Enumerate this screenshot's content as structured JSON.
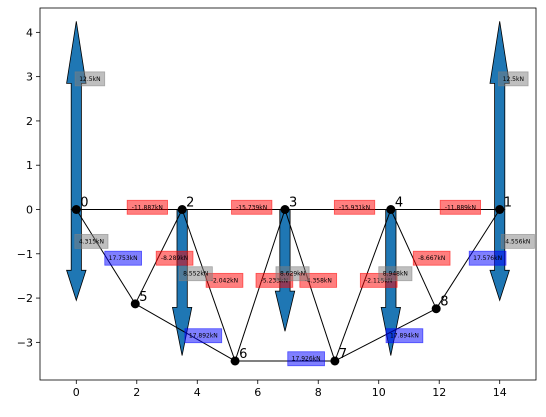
{
  "axes": {
    "xlim": [
      -1.2,
      15.2
    ],
    "ylim": [
      -3.85,
      4.55
    ],
    "xticks": [
      0,
      2,
      4,
      6,
      8,
      10,
      12,
      14
    ],
    "yticks": [
      -3,
      -2,
      -1,
      0,
      1,
      2,
      3,
      4
    ]
  },
  "nodes": [
    {
      "id": "0",
      "x": 0,
      "y": 0
    },
    {
      "id": "1",
      "x": 14,
      "y": 0
    },
    {
      "id": "2",
      "x": 3.5,
      "y": 0
    },
    {
      "id": "3",
      "x": 6.9,
      "y": 0
    },
    {
      "id": "4",
      "x": 10.4,
      "y": 0
    },
    {
      "id": "5",
      "x": 1.95,
      "y": -2.13
    },
    {
      "id": "6",
      "x": 5.25,
      "y": -3.42
    },
    {
      "id": "7",
      "x": 8.55,
      "y": -3.42
    },
    {
      "id": "8",
      "x": 11.9,
      "y": -2.24
    }
  ],
  "members": [
    {
      "from": "0",
      "to": "2",
      "force": "-11.887kN",
      "type": "compression",
      "lx": 2.35,
      "ly": 0.05
    },
    {
      "from": "2",
      "to": "3",
      "force": "-15.739kN",
      "type": "compression",
      "lx": 5.8,
      "ly": 0.05
    },
    {
      "from": "3",
      "to": "4",
      "force": "-15.931kN",
      "type": "compression",
      "lx": 9.2,
      "ly": 0.05
    },
    {
      "from": "4",
      "to": "1",
      "force": "-11.889kN",
      "type": "compression",
      "lx": 12.7,
      "ly": 0.05
    },
    {
      "from": "0",
      "to": "5",
      "force": "17.753kN",
      "type": "tension",
      "lx": 1.55,
      "ly": -1.1
    },
    {
      "from": "5",
      "to": "6",
      "force": "17.892kN",
      "type": "tension",
      "lx": 4.2,
      "ly": -2.85
    },
    {
      "from": "6",
      "to": "7",
      "force": "17.926kN",
      "type": "tension",
      "lx": 7.6,
      "ly": -3.37
    },
    {
      "from": "7",
      "to": "8",
      "force": "17.894kN",
      "type": "tension",
      "lx": 10.85,
      "ly": -2.85
    },
    {
      "from": "8",
      "to": "1",
      "force": "17.576kN",
      "type": "tension",
      "lx": 13.6,
      "ly": -1.1
    },
    {
      "from": "5",
      "to": "2",
      "force": "-8.289kN",
      "type": "compression",
      "lx": 3.25,
      "ly": -1.1
    },
    {
      "from": "2",
      "to": "6",
      "force": "-2.042kN",
      "type": "compression",
      "lx": 4.9,
      "ly": -1.6
    },
    {
      "from": "6",
      "to": "3",
      "force": "-5.233kN",
      "type": "compression",
      "lx": 6.55,
      "ly": -1.6
    },
    {
      "from": "3",
      "to": "7",
      "force": "-4.358kN",
      "type": "compression",
      "lx": 8.0,
      "ly": -1.6
    },
    {
      "from": "7",
      "to": "4",
      "force": "-2.115kN",
      "type": "compression",
      "lx": 10.0,
      "ly": -1.6
    },
    {
      "from": "4",
      "to": "8",
      "force": "-8.667kN",
      "type": "compression",
      "lx": 11.75,
      "ly": -1.1
    }
  ],
  "loads": [
    {
      "node": "0",
      "dy": -2.05
    },
    {
      "node": "2",
      "dy": -3.3
    },
    {
      "node": "3",
      "dy": -2.75
    },
    {
      "node": "4",
      "dy": -3.3
    },
    {
      "node": "1",
      "dy": -2.05
    }
  ],
  "load_labels": [
    {
      "text": "8.552kN",
      "lx": 3.95,
      "ly": -1.45
    },
    {
      "text": "8.629kN",
      "lx": 7.15,
      "ly": -1.45
    },
    {
      "text": "8.948kN",
      "lx": 10.55,
      "ly": -1.45
    }
  ],
  "reactions": [
    {
      "node": "0",
      "dy": 4.25,
      "label": "12.5kN",
      "lx": 0.45,
      "ly": 2.95
    },
    {
      "node": "1",
      "dy": 4.25,
      "label": "12.5kN",
      "lx": 14.45,
      "ly": 2.95
    }
  ],
  "reaction_h_labels": [
    {
      "text": "4.315kN",
      "lx": 0.5,
      "ly": -0.72
    },
    {
      "text": "4.556kN",
      "lx": 14.6,
      "ly": -0.72
    }
  ],
  "colors": {
    "arrow_fill": "#1f77b4",
    "compression": "#ff0000",
    "tension": "#0000ff",
    "gray_label": "#808080"
  }
}
